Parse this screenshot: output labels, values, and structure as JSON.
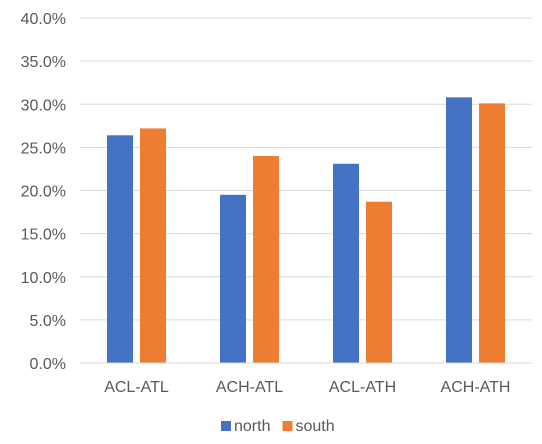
{
  "chart_data": {
    "type": "bar",
    "categories": [
      "ACL-ATL",
      "ACH-ATL",
      "ACL-ATH",
      "ACH-ATH"
    ],
    "series": [
      {
        "name": "north",
        "color": "#4472C4",
        "values": [
          26.4,
          19.5,
          23.1,
          30.8
        ]
      },
      {
        "name": "south",
        "color": "#ED7D31",
        "values": [
          27.2,
          24.0,
          18.7,
          30.1
        ]
      }
    ],
    "ylim": [
      0,
      40
    ],
    "yticks": [
      0,
      5,
      10,
      15,
      20,
      25,
      30,
      35,
      40
    ],
    "ytick_labels": [
      "0.0%",
      "5.0%",
      "10.0%",
      "15.0%",
      "20.0%",
      "25.0%",
      "30.0%",
      "35.0%",
      "40.0%"
    ],
    "grid": "horizontal",
    "legend_position": "bottom",
    "title": "",
    "xlabel": "",
    "ylabel": "",
    "colors": {
      "grid": "#D9D9D9",
      "text": "#595959",
      "axis": "#D9D9D9"
    }
  }
}
